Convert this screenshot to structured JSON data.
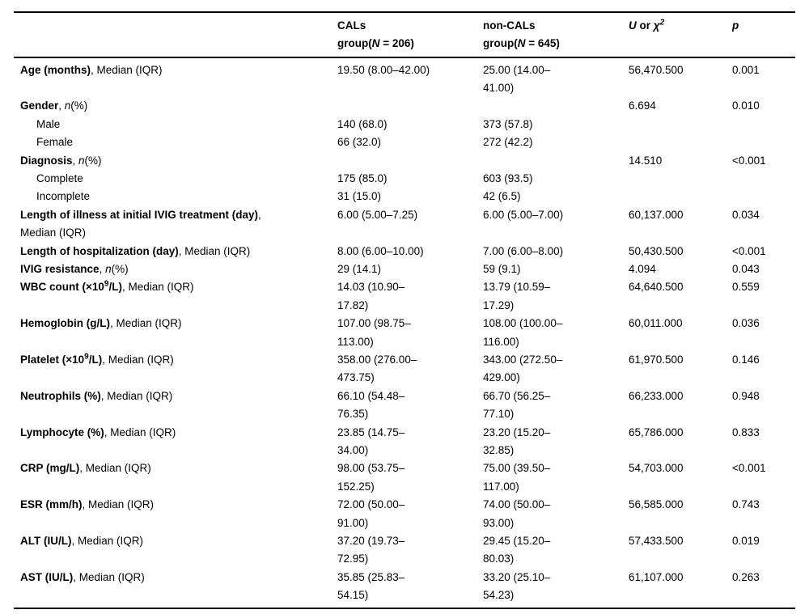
{
  "colors": {
    "background": "#ffffff",
    "text": "#000000",
    "rule": "#000000"
  },
  "table": {
    "columns": [
      {
        "key": "label",
        "header": []
      },
      {
        "key": "cals",
        "header": [
          {
            "t": "CALs\ngroup(",
            "s": "b"
          },
          {
            "t": "N",
            "s": "bi"
          },
          {
            "t": " = 206)",
            "s": "b"
          }
        ]
      },
      {
        "key": "non_cals",
        "header": [
          {
            "t": "non-CALs\ngroup(",
            "s": "b"
          },
          {
            "t": "N",
            "s": "bi"
          },
          {
            "t": " = 645)",
            "s": "b"
          }
        ]
      },
      {
        "key": "u_chi2",
        "header": [
          {
            "t": "U",
            "s": "bi"
          },
          {
            "t": " or ",
            "s": "b"
          },
          {
            "t": "χ",
            "s": "bi"
          },
          {
            "t": "2",
            "s": "bisup"
          }
        ]
      },
      {
        "key": "p",
        "header": [
          {
            "t": "p",
            "s": "bi"
          }
        ]
      }
    ],
    "rows": [
      {
        "indent": false,
        "label": [
          {
            "t": "Age (months)",
            "s": "b"
          },
          {
            "t": ", Median (IQR)",
            "s": "r"
          }
        ],
        "cals": "19.50 (8.00–42.00)",
        "non_cals": "25.00 (14.00–\n41.00)",
        "u_chi2": "56,470.500",
        "p": "0.001"
      },
      {
        "indent": false,
        "label": [
          {
            "t": "Gender",
            "s": "b"
          },
          {
            "t": ", ",
            "s": "r"
          },
          {
            "t": "n",
            "s": "i"
          },
          {
            "t": "(%)",
            "s": "r"
          }
        ],
        "cals": "",
        "non_cals": "",
        "u_chi2": "6.694",
        "p": "0.010"
      },
      {
        "indent": true,
        "label": [
          {
            "t": "Male",
            "s": "r"
          }
        ],
        "cals": "140 (68.0)",
        "non_cals": "373 (57.8)",
        "u_chi2": "",
        "p": ""
      },
      {
        "indent": true,
        "label": [
          {
            "t": "Female",
            "s": "r"
          }
        ],
        "cals": "66 (32.0)",
        "non_cals": "272 (42.2)",
        "u_chi2": "",
        "p": ""
      },
      {
        "indent": false,
        "label": [
          {
            "t": "Diagnosis",
            "s": "b"
          },
          {
            "t": ", ",
            "s": "r"
          },
          {
            "t": "n",
            "s": "i"
          },
          {
            "t": "(%)",
            "s": "r"
          }
        ],
        "cals": "",
        "non_cals": "",
        "u_chi2": "14.510",
        "p": "<0.001"
      },
      {
        "indent": true,
        "label": [
          {
            "t": "Complete",
            "s": "r"
          }
        ],
        "cals": "175 (85.0)",
        "non_cals": "603 (93.5)",
        "u_chi2": "",
        "p": ""
      },
      {
        "indent": true,
        "label": [
          {
            "t": "Incomplete",
            "s": "r"
          }
        ],
        "cals": "31 (15.0)",
        "non_cals": "42 (6.5)",
        "u_chi2": "",
        "p": ""
      },
      {
        "indent": false,
        "label": [
          {
            "t": "Length of illness at initial IVIG treatment (day)",
            "s": "b"
          },
          {
            "t": ",\nMedian (IQR)",
            "s": "r"
          }
        ],
        "cals": "6.00 (5.00–7.25)",
        "non_cals": "6.00 (5.00–7.00)",
        "u_chi2": "60,137.000",
        "p": "0.034"
      },
      {
        "indent": false,
        "label": [
          {
            "t": "Length of hospitalization (day)",
            "s": "b"
          },
          {
            "t": ", Median (IQR)",
            "s": "r"
          }
        ],
        "cals": "8.00 (6.00–10.00)",
        "non_cals": "7.00 (6.00–8.00)",
        "u_chi2": "50,430.500",
        "p": "<0.001"
      },
      {
        "indent": false,
        "label": [
          {
            "t": "IVIG resistance",
            "s": "b"
          },
          {
            "t": ", ",
            "s": "r"
          },
          {
            "t": "n",
            "s": "i"
          },
          {
            "t": "(%)",
            "s": "r"
          }
        ],
        "cals": "29 (14.1)",
        "non_cals": "59 (9.1)",
        "u_chi2": "4.094",
        "p": "0.043"
      },
      {
        "indent": false,
        "label": [
          {
            "t": "WBC count (×10",
            "s": "b"
          },
          {
            "t": "9",
            "s": "bsup"
          },
          {
            "t": "/L)",
            "s": "b"
          },
          {
            "t": ", Median (IQR)",
            "s": "r"
          }
        ],
        "cals": "14.03 (10.90–\n17.82)",
        "non_cals": "13.79 (10.59–\n17.29)",
        "u_chi2": "64,640.500",
        "p": "0.559"
      },
      {
        "indent": false,
        "label": [
          {
            "t": "Hemoglobin (g/L)",
            "s": "b"
          },
          {
            "t": ", Median (IQR)",
            "s": "r"
          }
        ],
        "cals": "107.00 (98.75–\n113.00)",
        "non_cals": "108.00 (100.00–\n116.00)",
        "u_chi2": "60,011.000",
        "p": "0.036"
      },
      {
        "indent": false,
        "label": [
          {
            "t": "Platelet (×10",
            "s": "b"
          },
          {
            "t": "9",
            "s": "bsup"
          },
          {
            "t": "/L)",
            "s": "b"
          },
          {
            "t": ", Median (IQR)",
            "s": "r"
          }
        ],
        "cals": "358.00 (276.00–\n473.75)",
        "non_cals": "343.00 (272.50–\n429.00)",
        "u_chi2": "61,970.500",
        "p": "0.146"
      },
      {
        "indent": false,
        "label": [
          {
            "t": "Neutrophils (%)",
            "s": "b"
          },
          {
            "t": ", Median (IQR)",
            "s": "r"
          }
        ],
        "cals": "66.10 (54.48–\n76.35)",
        "non_cals": "66.70 (56.25–\n77.10)",
        "u_chi2": "66,233.000",
        "p": "0.948"
      },
      {
        "indent": false,
        "label": [
          {
            "t": "Lymphocyte (%)",
            "s": "b"
          },
          {
            "t": ", Median (IQR)",
            "s": "r"
          }
        ],
        "cals": "23.85 (14.75–\n34.00)",
        "non_cals": "23.20 (15.20–\n32.85)",
        "u_chi2": "65,786.000",
        "p": "0.833"
      },
      {
        "indent": false,
        "label": [
          {
            "t": "CRP (mg/L)",
            "s": "b"
          },
          {
            "t": ", Median (IQR)",
            "s": "r"
          }
        ],
        "cals": "98.00 (53.75–\n152.25)",
        "non_cals": "75.00 (39.50–\n117.00)",
        "u_chi2": "54,703.000",
        "p": "<0.001"
      },
      {
        "indent": false,
        "label": [
          {
            "t": "ESR (mm/h)",
            "s": "b"
          },
          {
            "t": ", Median (IQR)",
            "s": "r"
          }
        ],
        "cals": "72.00 (50.00–\n91.00)",
        "non_cals": "74.00 (50.00–\n93.00)",
        "u_chi2": "56,585.000",
        "p": "0.743"
      },
      {
        "indent": false,
        "label": [
          {
            "t": "ALT (IU/L)",
            "s": "b"
          },
          {
            "t": ", Median (IQR)",
            "s": "r"
          }
        ],
        "cals": "37.20 (19.73–\n72.95)",
        "non_cals": "29.45 (15.20–\n80.03)",
        "u_chi2": "57,433.500",
        "p": "0.019"
      },
      {
        "indent": false,
        "label": [
          {
            "t": "AST (IU/L)",
            "s": "b"
          },
          {
            "t": ", Median (IQR)",
            "s": "r"
          }
        ],
        "cals": "35.85 (25.83–\n54.15)",
        "non_cals": "33.20 (25.10–\n54.23)",
        "u_chi2": "61,107.000",
        "p": "0.263"
      }
    ]
  }
}
